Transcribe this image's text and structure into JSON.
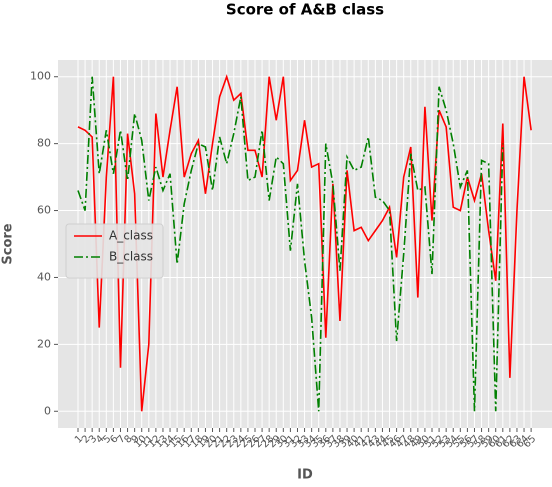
{
  "chart_data": {
    "type": "line",
    "title": "Score of A&B class",
    "xlabel": "ID",
    "ylabel": "Score",
    "categories": [
      "1",
      "2",
      "3",
      "4",
      "5",
      "6",
      "7",
      "8",
      "9",
      "10",
      "11",
      "12",
      "13",
      "14",
      "15",
      "16",
      "17",
      "18",
      "19",
      "20",
      "21",
      "22",
      "23",
      "24",
      "25",
      "26",
      "27",
      "28",
      "29",
      "30",
      "31",
      "32",
      "33",
      "34",
      "35",
      "36",
      "37",
      "38",
      "39",
      "40",
      "41",
      "42",
      "43",
      "44",
      "45",
      "46",
      "47",
      "48",
      "49",
      "50",
      "51",
      "52",
      "53",
      "54",
      "55",
      "56",
      "57",
      "58",
      "59",
      "60",
      "61",
      "62",
      "63",
      "64",
      "65"
    ],
    "series": [
      {
        "name": "A_class",
        "color": "#ff0000",
        "linestyle": "solid",
        "values": [
          85,
          84,
          82,
          25,
          70,
          100,
          13,
          83,
          65,
          0,
          20,
          89,
          70,
          84,
          97,
          70,
          77,
          81,
          65,
          80,
          94,
          100,
          93,
          95,
          78,
          78,
          70,
          100,
          87,
          100,
          69,
          72,
          87,
          73,
          74,
          22,
          68,
          27,
          72,
          54,
          55,
          51,
          54,
          57,
          61,
          46,
          70,
          79,
          34,
          91,
          57,
          90,
          85,
          61,
          60,
          70,
          63,
          71,
          54,
          39,
          86,
          10,
          60,
          100,
          84
        ]
      },
      {
        "name": "B_class",
        "color": "#008000",
        "linestyle": "dashdot",
        "values": [
          66,
          60,
          100,
          71,
          84,
          71,
          84,
          69,
          89,
          81,
          63,
          73,
          66,
          71,
          44,
          62,
          72,
          80,
          79,
          66,
          82,
          74,
          83,
          94,
          69,
          70,
          84,
          63,
          76,
          74,
          48,
          68,
          45,
          28,
          0,
          80,
          68,
          42,
          76,
          72,
          73,
          82,
          64,
          63,
          60,
          21,
          47,
          77,
          66,
          67,
          41,
          97,
          90,
          80,
          67,
          72,
          0,
          75,
          74,
          0,
          80,
          null,
          null,
          null,
          null
        ]
      }
    ],
    "ylim": [
      -5,
      105
    ],
    "yticks": [
      0,
      20,
      40,
      60,
      80,
      100
    ],
    "grid": true,
    "legend": "center left"
  }
}
